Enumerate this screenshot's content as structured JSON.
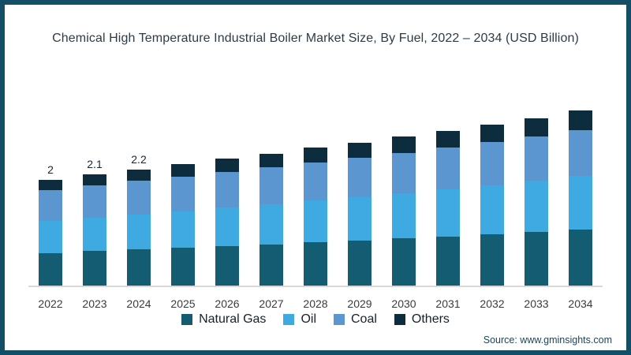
{
  "title": "Chemical High Temperature Industrial Boiler Market Size, By Fuel, 2022 – 2034 (USD Billion)",
  "source": "Source: www.gminsights.com",
  "frame": {
    "border_color": "#124E66",
    "background": "#FFFFFF"
  },
  "chart_data": {
    "type": "bar",
    "stacked": true,
    "title": "Chemical High Temperature Industrial Boiler Market Size, By Fuel, 2022 – 2034 (USD Billion)",
    "unit": "USD Billion",
    "categories": [
      "2022",
      "2023",
      "2024",
      "2025",
      "2026",
      "2027",
      "2028",
      "2029",
      "2030",
      "2031",
      "2032",
      "2033",
      "2034"
    ],
    "series": [
      {
        "name": "Natural Gas",
        "color": "#135C72",
        "values": [
          0.62,
          0.65,
          0.68,
          0.71,
          0.75,
          0.78,
          0.82,
          0.85,
          0.89,
          0.93,
          0.97,
          1.01,
          1.06
        ]
      },
      {
        "name": "Oil",
        "color": "#3FA9E1",
        "values": [
          0.61,
          0.64,
          0.67,
          0.7,
          0.73,
          0.76,
          0.79,
          0.83,
          0.86,
          0.89,
          0.93,
          0.97,
          1.01
        ]
      },
      {
        "name": "Coal",
        "color": "#5C96D0",
        "values": [
          0.57,
          0.6,
          0.63,
          0.65,
          0.67,
          0.7,
          0.72,
          0.74,
          0.76,
          0.79,
          0.81,
          0.84,
          0.87
        ]
      },
      {
        "name": "Others",
        "color": "#0D2D3F",
        "values": [
          0.2,
          0.21,
          0.22,
          0.24,
          0.25,
          0.26,
          0.28,
          0.29,
          0.31,
          0.32,
          0.34,
          0.35,
          0.37
        ]
      }
    ],
    "bar_labels": [
      "2",
      "2.1",
      "2.2",
      "",
      "",
      "",
      "",
      "",
      "",
      "",
      "",
      "",
      ""
    ],
    "ylim": [
      0,
      3.5
    ],
    "grid": false,
    "axis_color": "#D8D8D8",
    "legend_position": "bottom",
    "legend_entries": [
      "Natural Gas",
      "Oil",
      "Coal",
      "Others"
    ]
  }
}
